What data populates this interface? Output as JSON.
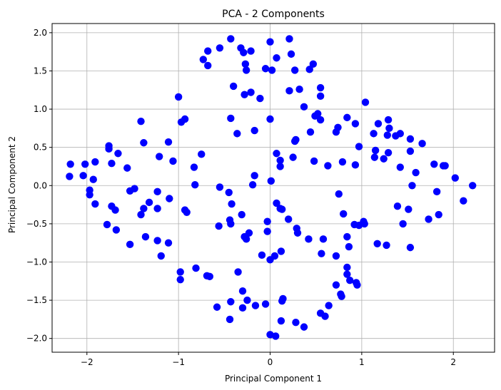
{
  "chart_data": {
    "type": "scatter",
    "title": "PCA - 2 Components",
    "xlabel": "Principal Component 1",
    "ylabel": "Principal Component 2",
    "xlim": [
      -2.38,
      2.45
    ],
    "ylim": [
      -2.18,
      2.12
    ],
    "grid": true,
    "marker_color": "#0000ff",
    "x_ticks": [
      {
        "value": -2,
        "label": "−2"
      },
      {
        "value": -1,
        "label": "−1"
      },
      {
        "value": 0,
        "label": "0"
      },
      {
        "value": 1,
        "label": "1"
      },
      {
        "value": 2,
        "label": "2"
      }
    ],
    "y_ticks": [
      {
        "value": -2.0,
        "label": "−2.0"
      },
      {
        "value": -1.5,
        "label": "−1.5"
      },
      {
        "value": -1.0,
        "label": "−1.0"
      },
      {
        "value": -0.5,
        "label": "−0.5"
      },
      {
        "value": 0.0,
        "label": "0.0"
      },
      {
        "value": 0.5,
        "label": "0.5"
      },
      {
        "value": 1.0,
        "label": "1.0"
      },
      {
        "value": 1.5,
        "label": "1.5"
      },
      {
        "value": 2.0,
        "label": "2.0"
      }
    ],
    "points": [
      [
        -0.43,
        1.92
      ],
      [
        -0.55,
        1.8
      ],
      [
        -0.68,
        1.76
      ],
      [
        -0.73,
        1.65
      ],
      [
        -0.68,
        1.57
      ],
      [
        -0.32,
        1.8
      ],
      [
        -0.29,
        1.74
      ],
      [
        -0.21,
        1.76
      ],
      [
        -0.27,
        1.59
      ],
      [
        -0.26,
        1.51
      ],
      [
        0.0,
        1.88
      ],
      [
        -0.05,
        1.53
      ],
      [
        0.02,
        1.51
      ],
      [
        0.07,
        1.67
      ],
      [
        0.21,
        1.92
      ],
      [
        0.23,
        1.72
      ],
      [
        0.27,
        1.51
      ],
      [
        0.43,
        1.52
      ],
      [
        0.47,
        1.59
      ],
      [
        0.55,
        1.28
      ],
      [
        0.55,
        1.17
      ],
      [
        0.32,
        1.26
      ],
      [
        0.21,
        1.24
      ],
      [
        -0.4,
        1.3
      ],
      [
        -0.28,
        1.19
      ],
      [
        -0.21,
        1.22
      ],
      [
        -0.11,
        1.14
      ],
      [
        -1.0,
        1.16
      ],
      [
        -0.43,
        0.88
      ],
      [
        -0.36,
        0.68
      ],
      [
        -0.17,
        0.72
      ],
      [
        0.0,
        0.87
      ],
      [
        0.37,
        1.03
      ],
      [
        0.49,
        0.91
      ],
      [
        0.52,
        0.94
      ],
      [
        0.55,
        0.86
      ],
      [
        0.44,
        0.7
      ],
      [
        0.27,
        0.58
      ],
      [
        0.28,
        0.6
      ],
      [
        -0.97,
        0.83
      ],
      [
        -0.93,
        0.87
      ],
      [
        -1.41,
        0.84
      ],
      [
        -1.38,
        0.56
      ],
      [
        -1.11,
        0.57
      ],
      [
        -0.75,
        0.41
      ],
      [
        -1.76,
        0.52
      ],
      [
        -1.76,
        0.48
      ],
      [
        -1.66,
        0.42
      ],
      [
        -1.73,
        0.29
      ],
      [
        -1.56,
        0.23
      ],
      [
        -2.18,
        0.28
      ],
      [
        -2.02,
        0.28
      ],
      [
        -1.91,
        0.31
      ],
      [
        -2.19,
        0.12
      ],
      [
        -2.04,
        0.13
      ],
      [
        -1.93,
        0.08
      ],
      [
        -1.97,
        -0.06
      ],
      [
        -1.97,
        -0.12
      ],
      [
        -1.91,
        -0.24
      ],
      [
        -1.73,
        -0.27
      ],
      [
        -1.69,
        -0.32
      ],
      [
        -1.53,
        -0.07
      ],
      [
        -1.48,
        -0.04
      ],
      [
        -1.78,
        -0.51
      ],
      [
        -1.68,
        -0.58
      ],
      [
        -1.53,
        -0.77
      ],
      [
        -1.41,
        -0.38
      ],
      [
        -1.38,
        -0.3
      ],
      [
        -1.32,
        -0.22
      ],
      [
        -1.23,
        -0.08
      ],
      [
        -1.23,
        -0.3
      ],
      [
        -1.36,
        -0.67
      ],
      [
        -1.23,
        -0.72
      ],
      [
        -1.19,
        -0.92
      ],
      [
        -1.11,
        -0.75
      ],
      [
        -1.1,
        -0.17
      ],
      [
        -1.21,
        0.38
      ],
      [
        -1.06,
        0.32
      ],
      [
        -0.83,
        0.24
      ],
      [
        -0.82,
        0.01
      ],
      [
        -0.93,
        -0.32
      ],
      [
        -0.91,
        -0.35
      ],
      [
        -0.55,
        -0.02
      ],
      [
        -0.45,
        -0.09
      ],
      [
        -0.42,
        -0.24
      ],
      [
        -0.44,
        -0.45
      ],
      [
        -0.43,
        -0.5
      ],
      [
        -0.56,
        -0.53
      ],
      [
        -0.28,
        -0.67
      ],
      [
        -0.26,
        -0.7
      ],
      [
        -0.23,
        -0.62
      ],
      [
        -0.31,
        -0.38
      ],
      [
        -0.19,
        0.01
      ],
      [
        -0.17,
        0.13
      ],
      [
        -0.03,
        -0.47
      ],
      [
        -0.03,
        -0.6
      ],
      [
        0.01,
        0.06
      ],
      [
        0.07,
        0.42
      ],
      [
        0.11,
        0.33
      ],
      [
        0.11,
        0.25
      ],
      [
        0.07,
        -0.23
      ],
      [
        0.11,
        -0.3
      ],
      [
        0.13,
        -0.31
      ],
      [
        0.2,
        -0.44
      ],
      [
        0.29,
        -0.56
      ],
      [
        0.3,
        -0.62
      ],
      [
        0.42,
        -0.7
      ],
      [
        0.56,
        -0.89
      ],
      [
        0.58,
        -0.7
      ],
      [
        0.72,
        -0.92
      ],
      [
        0.8,
        -0.37
      ],
      [
        0.84,
        -0.67
      ],
      [
        0.86,
        -0.8
      ],
      [
        0.92,
        -0.51
      ],
      [
        0.97,
        -0.52
      ],
      [
        1.02,
        -0.47
      ],
      [
        1.03,
        -0.5
      ],
      [
        0.75,
        -0.11
      ],
      [
        0.63,
        0.26
      ],
      [
        0.79,
        0.31
      ],
      [
        0.48,
        0.32
      ],
      [
        0.25,
        0.37
      ],
      [
        0.93,
        0.27
      ],
      [
        0.97,
        0.51
      ],
      [
        0.74,
        0.76
      ],
      [
        0.72,
        0.7
      ],
      [
        0.84,
        0.89
      ],
      [
        0.93,
        0.81
      ],
      [
        1.04,
        1.09
      ],
      [
        1.13,
        0.68
      ],
      [
        1.18,
        0.81
      ],
      [
        1.15,
        0.46
      ],
      [
        1.14,
        0.37
      ],
      [
        1.24,
        0.35
      ],
      [
        1.29,
        0.43
      ],
      [
        1.28,
        0.66
      ],
      [
        1.3,
        0.75
      ],
      [
        1.29,
        0.86
      ],
      [
        1.37,
        0.65
      ],
      [
        1.42,
        0.68
      ],
      [
        1.42,
        0.24
      ],
      [
        1.53,
        0.45
      ],
      [
        1.53,
        0.61
      ],
      [
        1.66,
        0.55
      ],
      [
        1.55,
        0.0
      ],
      [
        1.59,
        0.17
      ],
      [
        1.79,
        0.28
      ],
      [
        1.89,
        0.26
      ],
      [
        1.91,
        0.26
      ],
      [
        2.02,
        0.1
      ],
      [
        2.21,
        0.0
      ],
      [
        2.11,
        -0.2
      ],
      [
        1.82,
        -0.08
      ],
      [
        1.73,
        -0.44
      ],
      [
        1.84,
        -0.38
      ],
      [
        1.51,
        -0.31
      ],
      [
        1.45,
        -0.5
      ],
      [
        1.39,
        -0.27
      ],
      [
        1.53,
        -0.81
      ],
      [
        1.27,
        -0.78
      ],
      [
        1.17,
        -0.76
      ],
      [
        0.84,
        -1.07
      ],
      [
        0.84,
        -1.16
      ],
      [
        0.87,
        -1.24
      ],
      [
        0.94,
        -1.27
      ],
      [
        0.95,
        -1.3
      ],
      [
        0.77,
        -1.42
      ],
      [
        0.78,
        -1.45
      ],
      [
        0.72,
        -1.3
      ],
      [
        0.64,
        -1.57
      ],
      [
        0.55,
        -1.67
      ],
      [
        0.6,
        -1.71
      ],
      [
        0.37,
        -1.85
      ],
      [
        0.28,
        -1.79
      ],
      [
        0.12,
        -1.77
      ],
      [
        0.14,
        -1.48
      ],
      [
        0.13,
        -1.51
      ],
      [
        0.12,
        -0.86
      ],
      [
        0.05,
        -0.92
      ],
      [
        0.0,
        -0.97
      ],
      [
        -0.09,
        -0.91
      ],
      [
        0.0,
        -1.95
      ],
      [
        0.06,
        -1.97
      ],
      [
        -0.05,
        -1.55
      ],
      [
        -0.16,
        -1.57
      ],
      [
        -0.25,
        -1.5
      ],
      [
        -0.3,
        -1.6
      ],
      [
        -0.3,
        -1.38
      ],
      [
        -0.35,
        -1.13
      ],
      [
        -0.43,
        -1.52
      ],
      [
        -0.44,
        -1.75
      ],
      [
        -0.58,
        -1.59
      ],
      [
        -0.66,
        -1.19
      ],
      [
        -0.69,
        -1.18
      ],
      [
        -0.81,
        -1.08
      ],
      [
        -0.98,
        -1.13
      ],
      [
        -0.98,
        -1.23
      ]
    ]
  }
}
